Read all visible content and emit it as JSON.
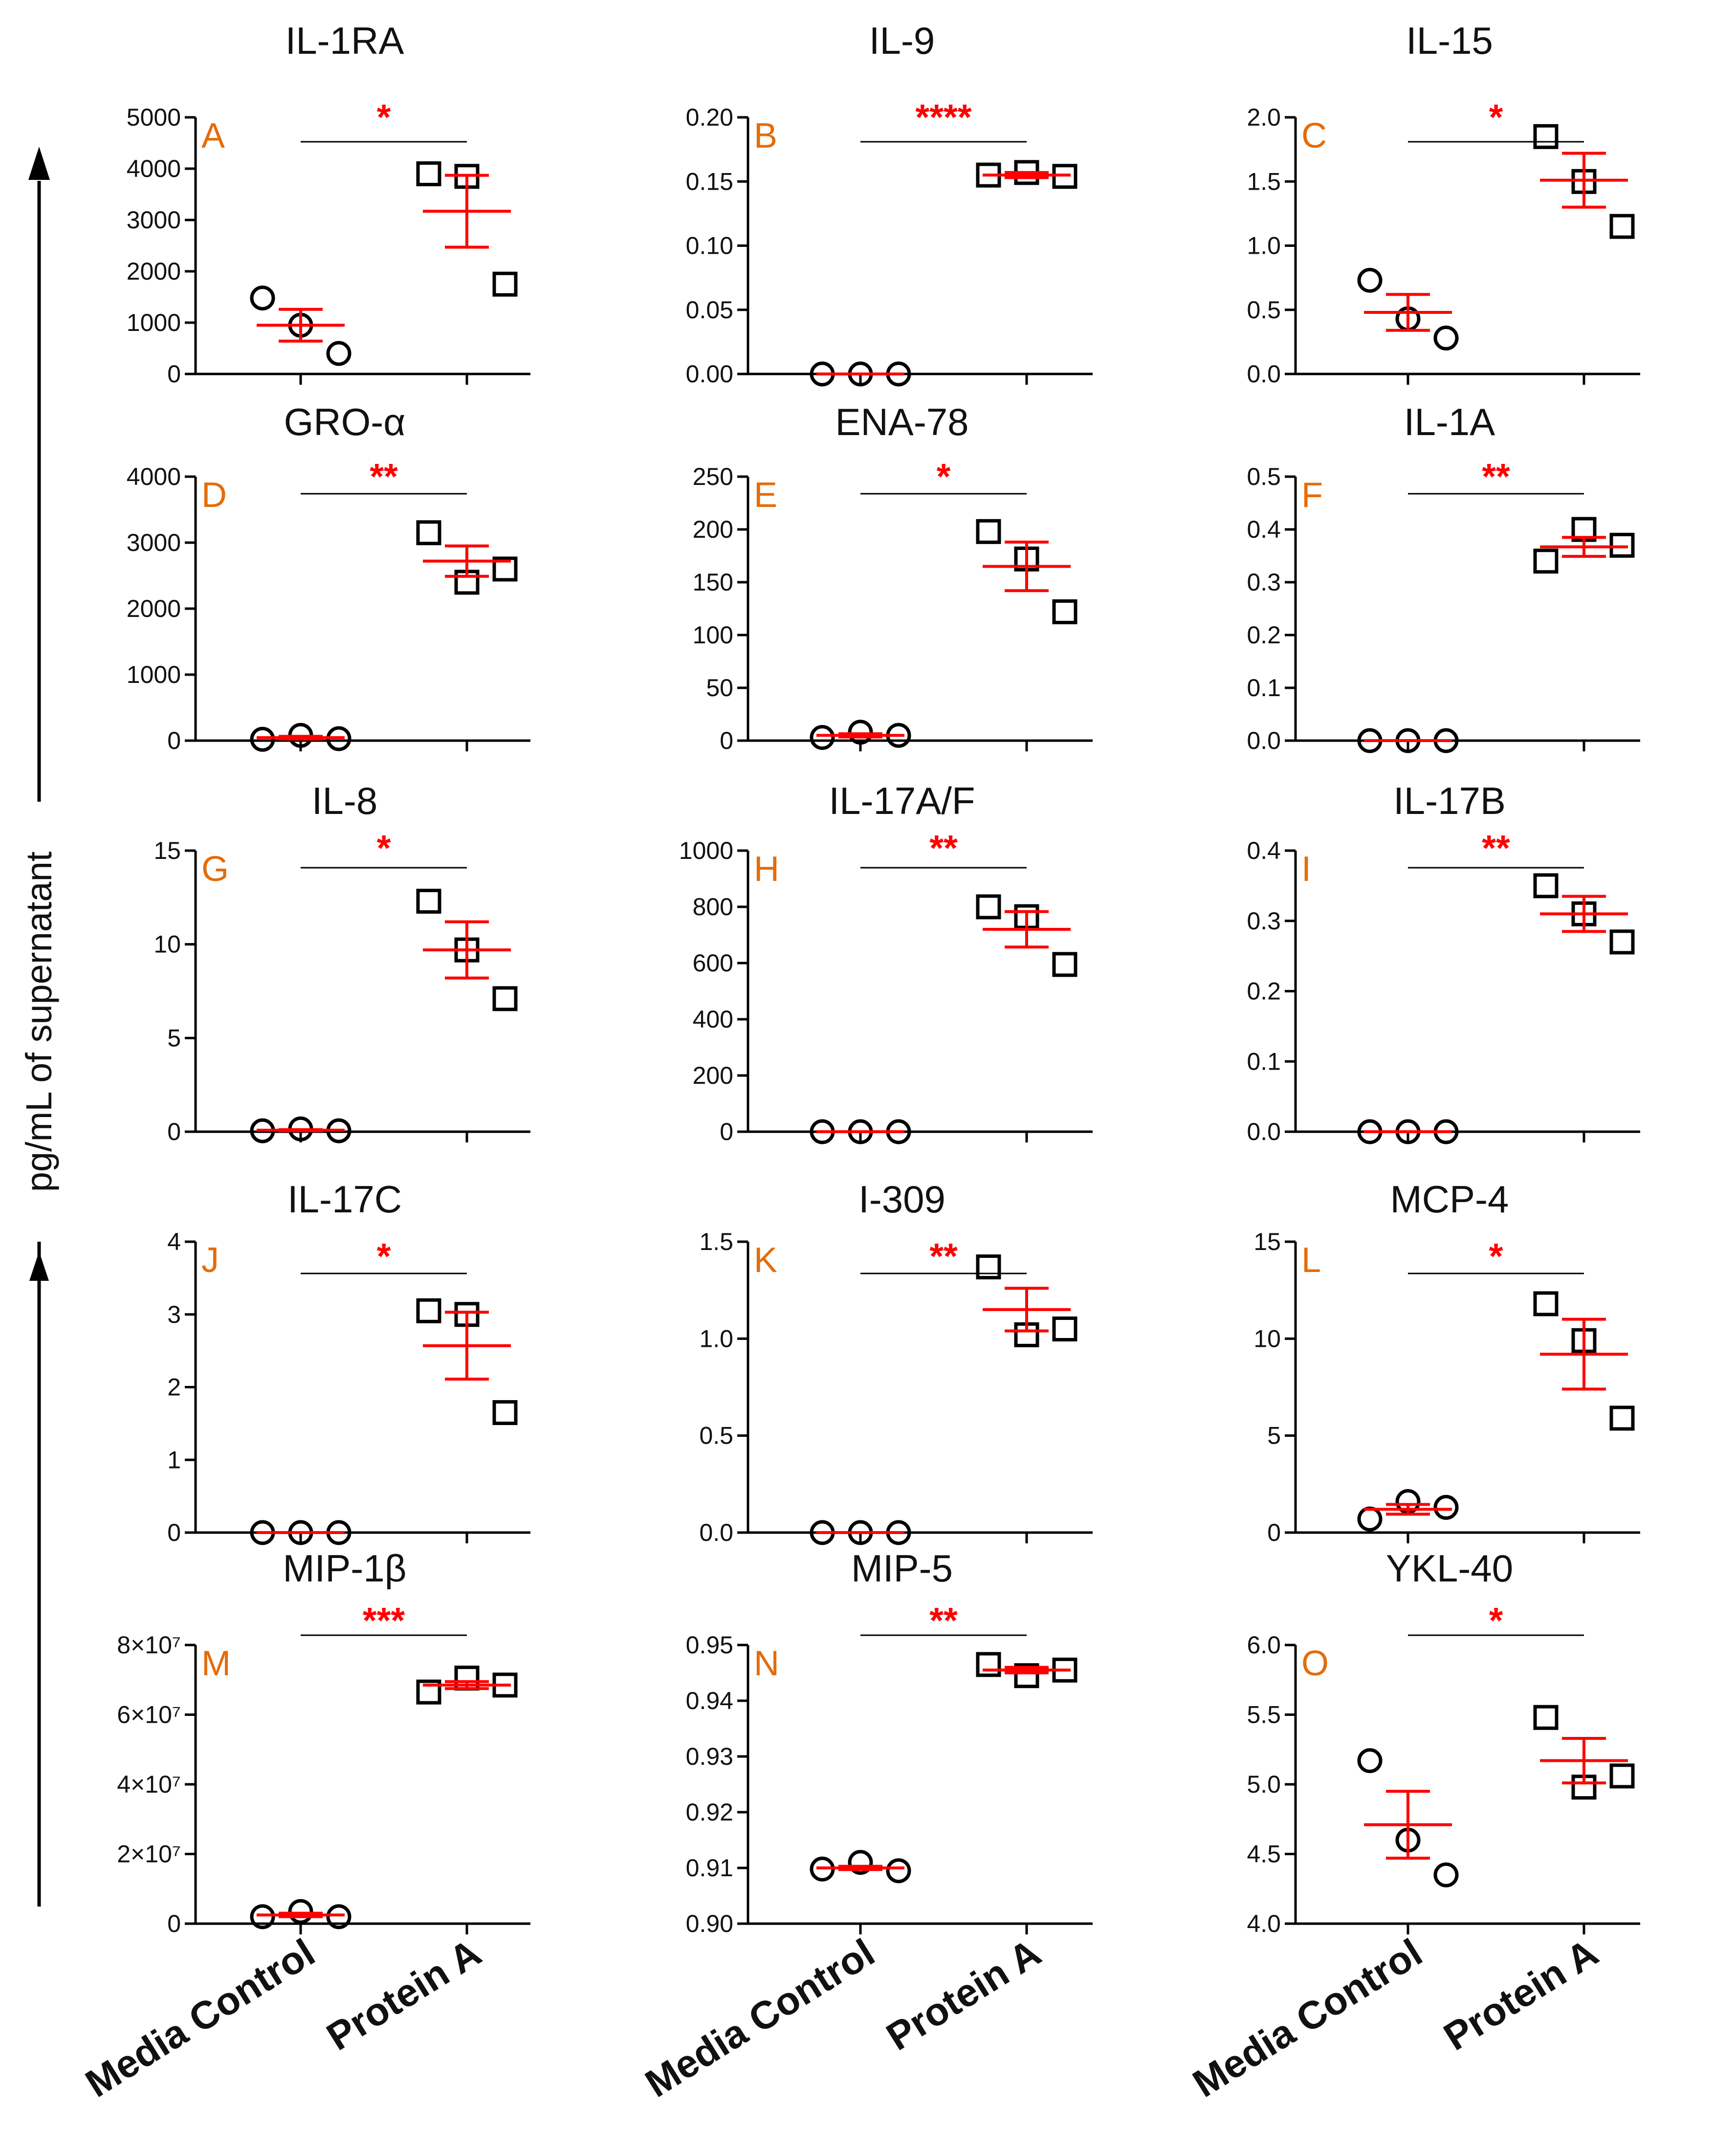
{
  "figure": {
    "y_axis_label": "pg/mL of supernatant",
    "groups": [
      "Media Control",
      "Protein A"
    ],
    "colors": {
      "mean_sem": "#ff0000",
      "letter": "#e46c0a",
      "stars": "#ff0000",
      "points": "#000000"
    }
  },
  "chart_data": [
    {
      "type": "scatter",
      "panel": "A",
      "title": "IL-1RA",
      "ylim": [
        0,
        5000
      ],
      "yticks": [
        0,
        1000,
        2000,
        3000,
        4000,
        5000
      ],
      "ytick_labels": [
        "0",
        "1000",
        "2000",
        "3000",
        "4000",
        "5000"
      ],
      "significance": "*",
      "series": [
        {
          "name": "Media Control",
          "marker": "circle",
          "values": [
            1480,
            950,
            400
          ],
          "mean": 950,
          "sem": 310
        },
        {
          "name": "Protein A",
          "marker": "square",
          "values": [
            3900,
            3850,
            1750
          ],
          "mean": 3170,
          "sem": 700
        }
      ]
    },
    {
      "type": "scatter",
      "panel": "B",
      "title": "IL-9",
      "ylim": [
        0,
        0.2
      ],
      "yticks": [
        0,
        0.05,
        0.1,
        0.15,
        0.2
      ],
      "ytick_labels": [
        "0.00",
        "0.05",
        "0.10",
        "0.15",
        "0.20"
      ],
      "significance": "****",
      "series": [
        {
          "name": "Media Control",
          "marker": "circle",
          "values": [
            0,
            0,
            0
          ],
          "mean": 0,
          "sem": 0
        },
        {
          "name": "Protein A",
          "marker": "square",
          "values": [
            0.155,
            0.157,
            0.154
          ],
          "mean": 0.155,
          "sem": 0.002
        }
      ]
    },
    {
      "type": "scatter",
      "panel": "C",
      "title": "IL-15",
      "ylim": [
        0,
        2.0
      ],
      "yticks": [
        0,
        0.5,
        1.0,
        1.5,
        2.0
      ],
      "ytick_labels": [
        "0.0",
        "0.5",
        "1.0",
        "1.5",
        "2.0"
      ],
      "significance": "*",
      "series": [
        {
          "name": "Media Control",
          "marker": "circle",
          "values": [
            0.73,
            0.43,
            0.28
          ],
          "mean": 0.48,
          "sem": 0.14
        },
        {
          "name": "Protein A",
          "marker": "square",
          "values": [
            1.85,
            1.5,
            1.15
          ],
          "mean": 1.51,
          "sem": 0.21
        }
      ]
    },
    {
      "type": "scatter",
      "panel": "D",
      "title": "GRO-α",
      "ylim": [
        0,
        4000
      ],
      "yticks": [
        0,
        1000,
        2000,
        3000,
        4000
      ],
      "ytick_labels": [
        "0",
        "1000",
        "2000",
        "3000",
        "4000"
      ],
      "significance": "**",
      "series": [
        {
          "name": "Media Control",
          "marker": "circle",
          "values": [
            20,
            80,
            30
          ],
          "mean": 45,
          "sem": 20
        },
        {
          "name": "Protein A",
          "marker": "square",
          "values": [
            3150,
            2400,
            2600
          ],
          "mean": 2720,
          "sem": 230
        }
      ]
    },
    {
      "type": "scatter",
      "panel": "E",
      "title": "ENA-78",
      "ylim": [
        0,
        250
      ],
      "yticks": [
        0,
        50,
        100,
        150,
        200,
        250
      ],
      "ytick_labels": [
        "0",
        "50",
        "100",
        "150",
        "200",
        "250"
      ],
      "significance": "*",
      "series": [
        {
          "name": "Media Control",
          "marker": "circle",
          "values": [
            3,
            8,
            5
          ],
          "mean": 5,
          "sem": 1.5
        },
        {
          "name": "Protein A",
          "marker": "square",
          "values": [
            198,
            172,
            122
          ],
          "mean": 165,
          "sem": 23
        }
      ]
    },
    {
      "type": "scatter",
      "panel": "F",
      "title": "IL-1A",
      "ylim": [
        0,
        0.5
      ],
      "yticks": [
        0,
        0.1,
        0.2,
        0.3,
        0.4,
        0.5
      ],
      "ytick_labels": [
        "0.0",
        "0.1",
        "0.2",
        "0.3",
        "0.4",
        "0.5"
      ],
      "significance": "**",
      "series": [
        {
          "name": "Media Control",
          "marker": "circle",
          "values": [
            0,
            0,
            0
          ],
          "mean": 0,
          "sem": 0
        },
        {
          "name": "Protein A",
          "marker": "square",
          "values": [
            0.34,
            0.4,
            0.37
          ],
          "mean": 0.367,
          "sem": 0.018
        }
      ]
    },
    {
      "type": "scatter",
      "panel": "G",
      "title": "IL-8",
      "ylim": [
        0,
        15
      ],
      "yticks": [
        0,
        5,
        10,
        15
      ],
      "ytick_labels": [
        "0",
        "5",
        "10",
        "15"
      ],
      "significance": "*",
      "series": [
        {
          "name": "Media Control",
          "marker": "circle",
          "values": [
            0.05,
            0.15,
            0.05
          ],
          "mean": 0.08,
          "sem": 0.03
        },
        {
          "name": "Protein A",
          "marker": "square",
          "values": [
            12.3,
            9.7,
            7.1
          ],
          "mean": 9.7,
          "sem": 1.5
        }
      ]
    },
    {
      "type": "scatter",
      "panel": "H",
      "title": "IL-17A/F",
      "ylim": [
        0,
        1000
      ],
      "yticks": [
        0,
        200,
        400,
        600,
        800,
        1000
      ],
      "ytick_labels": [
        "0",
        "200",
        "400",
        "600",
        "800",
        "1000"
      ],
      "significance": "**",
      "series": [
        {
          "name": "Media Control",
          "marker": "circle",
          "values": [
            0,
            0,
            0
          ],
          "mean": 0,
          "sem": 0
        },
        {
          "name": "Protein A",
          "marker": "square",
          "values": [
            800,
            765,
            595
          ],
          "mean": 720,
          "sem": 63
        }
      ]
    },
    {
      "type": "scatter",
      "panel": "I",
      "title": "IL-17B",
      "ylim": [
        0,
        0.4
      ],
      "yticks": [
        0,
        0.1,
        0.2,
        0.3,
        0.4
      ],
      "ytick_labels": [
        "0.0",
        "0.1",
        "0.2",
        "0.3",
        "0.4"
      ],
      "significance": "**",
      "series": [
        {
          "name": "Media Control",
          "marker": "circle",
          "values": [
            0,
            0,
            0
          ],
          "mean": 0,
          "sem": 0
        },
        {
          "name": "Protein A",
          "marker": "square",
          "values": [
            0.35,
            0.31,
            0.27
          ],
          "mean": 0.31,
          "sem": 0.025
        }
      ]
    },
    {
      "type": "scatter",
      "panel": "J",
      "title": "IL-17C",
      "ylim": [
        0,
        4
      ],
      "yticks": [
        0,
        1,
        2,
        3,
        4
      ],
      "ytick_labels": [
        "0",
        "1",
        "2",
        "3",
        "4"
      ],
      "significance": "*",
      "series": [
        {
          "name": "Media Control",
          "marker": "circle",
          "values": [
            0,
            0,
            0
          ],
          "mean": 0,
          "sem": 0
        },
        {
          "name": "Protein A",
          "marker": "square",
          "values": [
            3.05,
            3.0,
            1.65
          ],
          "mean": 2.57,
          "sem": 0.46
        }
      ]
    },
    {
      "type": "scatter",
      "panel": "K",
      "title": "I-309",
      "ylim": [
        0,
        1.5
      ],
      "yticks": [
        0,
        0.5,
        1.0,
        1.5
      ],
      "ytick_labels": [
        "0.0",
        "0.5",
        "1.0",
        "1.5"
      ],
      "significance": "**",
      "series": [
        {
          "name": "Media Control",
          "marker": "circle",
          "values": [
            0,
            0,
            0
          ],
          "mean": 0,
          "sem": 0
        },
        {
          "name": "Protein A",
          "marker": "square",
          "values": [
            1.37,
            1.02,
            1.05
          ],
          "mean": 1.15,
          "sem": 0.11
        }
      ]
    },
    {
      "type": "scatter",
      "panel": "L",
      "title": "MCP-4",
      "ylim": [
        0,
        15
      ],
      "yticks": [
        0,
        5,
        10,
        15
      ],
      "ytick_labels": [
        "0",
        "5",
        "10",
        "15"
      ],
      "significance": "*",
      "series": [
        {
          "name": "Media Control",
          "marker": "circle",
          "values": [
            0.7,
            1.6,
            1.3
          ],
          "mean": 1.2,
          "sem": 0.25
        },
        {
          "name": "Protein A",
          "marker": "square",
          "values": [
            11.8,
            9.9,
            5.9
          ],
          "mean": 9.2,
          "sem": 1.8
        }
      ]
    },
    {
      "type": "scatter",
      "panel": "M",
      "title": "MIP-1β",
      "ylim": [
        0,
        80000000
      ],
      "yticks": [
        0,
        20000000,
        40000000,
        60000000,
        80000000
      ],
      "ytick_labels": [
        "0",
        "2×10⁷",
        "4×10⁷",
        "6×10⁷",
        "8×10⁷"
      ],
      "significance": "***",
      "series": [
        {
          "name": "Media Control",
          "marker": "circle",
          "values": [
            2000000,
            3500000,
            2000000
          ],
          "mean": 2500000,
          "sem": 500000
        },
        {
          "name": "Protein A",
          "marker": "square",
          "values": [
            66500000,
            70500000,
            68500000
          ],
          "mean": 68500000,
          "sem": 1000000
        }
      ]
    },
    {
      "type": "scatter",
      "panel": "N",
      "title": "MIP-5",
      "ylim": [
        0.9,
        0.95
      ],
      "yticks": [
        0.9,
        0.91,
        0.92,
        0.93,
        0.94,
        0.95
      ],
      "ytick_labels": [
        "0.90",
        "0.91",
        "0.92",
        "0.93",
        "0.94",
        "0.95"
      ],
      "significance": "**",
      "series": [
        {
          "name": "Media Control",
          "marker": "circle",
          "values": [
            0.9098,
            0.911,
            0.9095
          ],
          "mean": 0.91,
          "sem": 0.0003
        },
        {
          "name": "Protein A",
          "marker": "square",
          "values": [
            0.9465,
            0.9445,
            0.9455
          ],
          "mean": 0.9455,
          "sem": 0.0005
        }
      ]
    },
    {
      "type": "scatter",
      "panel": "O",
      "title": "YKL-40",
      "ylim": [
        4.0,
        6.0
      ],
      "yticks": [
        4.0,
        4.5,
        5.0,
        5.5,
        6.0
      ],
      "ytick_labels": [
        "4.0",
        "4.5",
        "5.0",
        "5.5",
        "6.0"
      ],
      "significance": "*",
      "series": [
        {
          "name": "Media Control",
          "marker": "circle",
          "values": [
            5.17,
            4.6,
            4.35
          ],
          "mean": 4.71,
          "sem": 0.24
        },
        {
          "name": "Protein A",
          "marker": "square",
          "values": [
            5.48,
            4.98,
            5.06
          ],
          "mean": 5.17,
          "sem": 0.16
        }
      ]
    }
  ]
}
